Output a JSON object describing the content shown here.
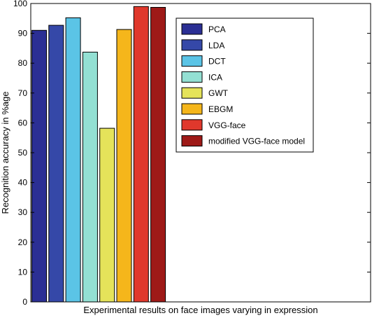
{
  "chart_data": {
    "type": "bar",
    "title": "",
    "xlabel": "Experimental results on face images varying in expression",
    "ylabel": "Recognition accuracy in %age",
    "ylim": [
      0,
      100
    ],
    "yticks": [
      0,
      10,
      20,
      30,
      40,
      50,
      60,
      70,
      80,
      90,
      100
    ],
    "grid": false,
    "legend_position": "top-right",
    "series": [
      {
        "name": "PCA",
        "value": 91,
        "color": "#2b2f94"
      },
      {
        "name": "LDA",
        "value": 92.7,
        "color": "#3548a8"
      },
      {
        "name": "DCT",
        "value": 95.2,
        "color": "#5bc4e6"
      },
      {
        "name": "ICA",
        "value": 83.7,
        "color": "#93e0d3"
      },
      {
        "name": "GWT",
        "value": 58.2,
        "color": "#e5e35a"
      },
      {
        "name": "EBGM",
        "value": 91.3,
        "color": "#f5b61b"
      },
      {
        "name": "VGG-face",
        "value": 99,
        "color": "#e0382c"
      },
      {
        "name": "modified VGG-face model",
        "value": 98.7,
        "color": "#9e1a18"
      }
    ]
  }
}
